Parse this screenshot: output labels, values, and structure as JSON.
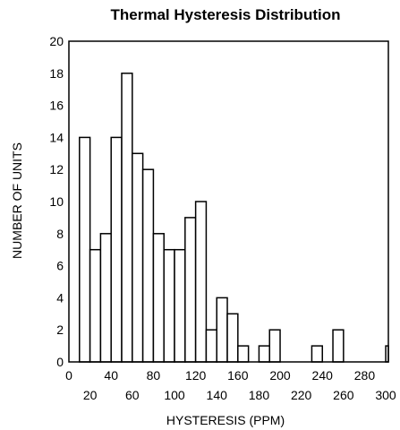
{
  "chart_data": {
    "type": "bar",
    "title": "Thermal Hysteresis Distribution",
    "xlabel": "HYSTERESIS (PPM)",
    "ylabel": "NUMBER OF UNITS",
    "xlim": [
      0,
      300
    ],
    "ylim": [
      0,
      20
    ],
    "bin_width": 10,
    "x_ticks_upper": [
      "0",
      "40",
      "80",
      "120",
      "160",
      "200",
      "240",
      "280"
    ],
    "x_ticks_lower": [
      "20",
      "60",
      "100",
      "140",
      "180",
      "220",
      "260",
      "300"
    ],
    "y_ticks": [
      "0",
      "2",
      "4",
      "6",
      "8",
      "10",
      "12",
      "14",
      "16",
      "18",
      "20"
    ],
    "grid": false,
    "bars": [
      {
        "x": 15,
        "value": 14
      },
      {
        "x": 25,
        "value": 7
      },
      {
        "x": 35,
        "value": 8
      },
      {
        "x": 45,
        "value": 14
      },
      {
        "x": 55,
        "value": 18
      },
      {
        "x": 65,
        "value": 13
      },
      {
        "x": 75,
        "value": 12
      },
      {
        "x": 85,
        "value": 8
      },
      {
        "x": 95,
        "value": 7
      },
      {
        "x": 105,
        "value": 7
      },
      {
        "x": 115,
        "value": 9
      },
      {
        "x": 125,
        "value": 10
      },
      {
        "x": 135,
        "value": 2
      },
      {
        "x": 145,
        "value": 4
      },
      {
        "x": 155,
        "value": 3
      },
      {
        "x": 165,
        "value": 1
      },
      {
        "x": 185,
        "value": 1
      },
      {
        "x": 195,
        "value": 2
      },
      {
        "x": 235,
        "value": 1
      },
      {
        "x": 255,
        "value": 2
      },
      {
        "x": 305,
        "value": 1
      }
    ]
  }
}
